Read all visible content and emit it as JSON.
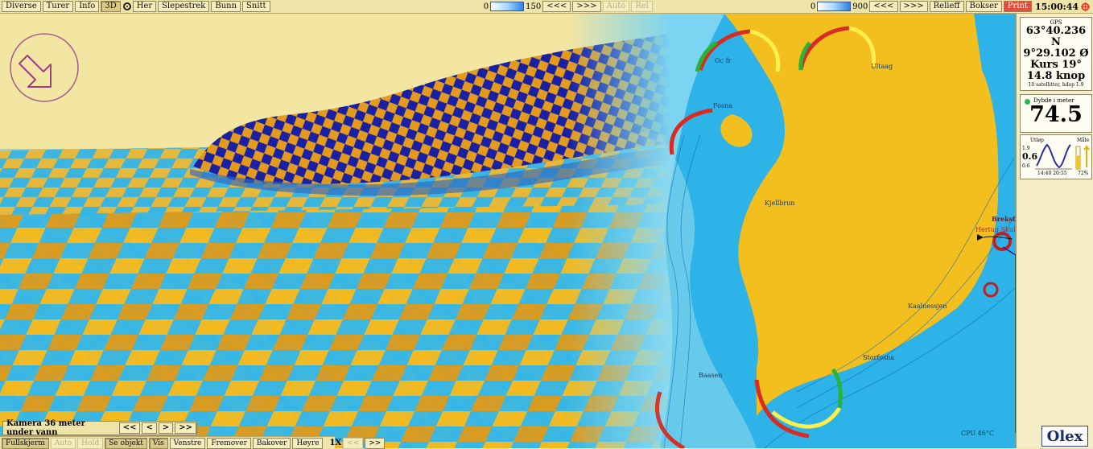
{
  "toolbar": {
    "buttons": [
      "Diverse",
      "Turer",
      "Info",
      "3D",
      "Her",
      "Slepestrek",
      "Bunn",
      "Snitt"
    ],
    "left_scale_min": "0",
    "left_scale_max": "150",
    "left_scroll_buttons": [
      "<<<",
      ">>>"
    ],
    "left_disabled": [
      "Auto",
      "Rel"
    ],
    "right_scale_min": "0",
    "right_scale_max": "900",
    "right_scroll_buttons": [
      "<<<",
      ">>>"
    ],
    "right_buttons": [
      "Relieff",
      "Bokser"
    ],
    "print_label": "Print",
    "time": "15:00:44"
  },
  "gps": {
    "label": "GPS",
    "lat": "63°40.236 N",
    "lon": "9°29.102 Ø",
    "course": "Kurs 19°",
    "speed": "14.8 knop",
    "info": "10 satellitter, hdop 1.9"
  },
  "depth": {
    "label": "Dybde i meter",
    "value": "74.5"
  },
  "tide": {
    "left_label": "Utløp",
    "right_label": "Måle",
    "top": "1.9",
    "middle": "0.6",
    "bottom": "0.6",
    "times": "14:40 20:55",
    "right_value": "72%",
    "level": 0.6
  },
  "camera": {
    "label": "Kamera 36 meter under vann",
    "buttons": [
      "<<",
      "<",
      ">",
      ">>"
    ]
  },
  "bottom_bar": {
    "buttons": [
      "Fullskjerm",
      "Auto",
      "Hold",
      "Se objekt",
      "Vis",
      "Venstre",
      "Fremover",
      "Bakover",
      "Høyre",
      "1X",
      "<<",
      ">>"
    ],
    "disabled": [
      "Auto",
      "Hold"
    ]
  },
  "map_labels": {
    "brekstad": "Brekstad",
    "hertug_skule": "Hertug Skule",
    "kaalnessjen": "Kaalnessjen",
    "fosna": "Fosna",
    "ultaag": "Ultaag",
    "oc_fr": "Oc fr",
    "storfosna": "Storfosna",
    "baasen": "Baasen",
    "kjellbrun": "Kjellbrun",
    "cpu": "CPU 46°C"
  },
  "olex": "Olex"
}
